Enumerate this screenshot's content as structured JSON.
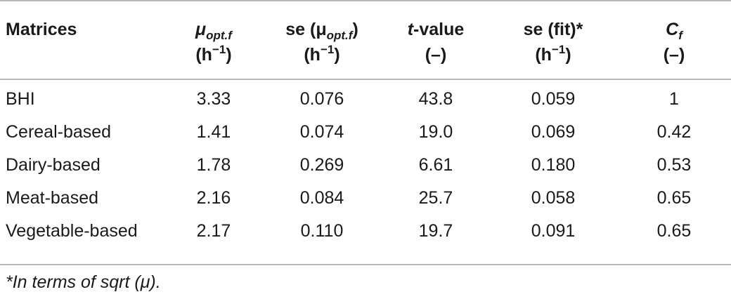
{
  "table": {
    "headers": {
      "matrices": "Matrices",
      "mu_opt": {
        "symbol": "μ",
        "sub": "opt.f",
        "unit": "(h",
        "unit_sup": "−1",
        "unit_end": ")"
      },
      "se_mu": {
        "prefix": "se (μ",
        "sub": "opt.f",
        "suffix": ")",
        "unit": "(h",
        "unit_sup": "−1",
        "unit_end": ")"
      },
      "t_value": {
        "italic": "t",
        "rest": "-value",
        "unit": "(–)"
      },
      "se_fit": {
        "label": "se (fit)*",
        "unit": "(h",
        "unit_sup": "−1",
        "unit_end": ")"
      },
      "cf": {
        "symbol": "C",
        "sub": "f",
        "unit": "(–)"
      }
    },
    "rows": [
      {
        "matrix": "BHI",
        "mu": "3.33",
        "se_mu": "0.076",
        "t": "43.8",
        "se_fit": "0.059",
        "cf": "1"
      },
      {
        "matrix": "Cereal-based",
        "mu": "1.41",
        "se_mu": "0.074",
        "t": "19.0",
        "se_fit": "0.069",
        "cf": "0.42"
      },
      {
        "matrix": "Dairy-based",
        "mu": "1.78",
        "se_mu": "0.269",
        "t": "6.61",
        "se_fit": "0.180",
        "cf": "0.53"
      },
      {
        "matrix": "Meat-based",
        "mu": "2.16",
        "se_mu": "0.084",
        "t": "25.7",
        "se_fit": "0.058",
        "cf": "0.65"
      },
      {
        "matrix": "Vegetable-based",
        "mu": "2.17",
        "se_mu": "0.110",
        "t": "19.7",
        "se_fit": "0.091",
        "cf": "0.65"
      }
    ]
  },
  "footnote": "*In terms of sqrt (μ)."
}
